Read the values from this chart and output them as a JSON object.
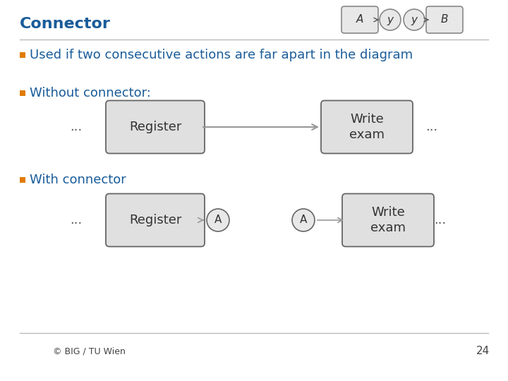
{
  "title": "Connector",
  "title_color": "#1a5c99",
  "title_fontsize": 16,
  "bullet_color": "#e07b00",
  "bullet_text_color": "#1a5c99",
  "bullet1": "Used if two consecutive actions are far apart in the diagram",
  "bullet1_fontsize": 13,
  "bullet2": "Without connector:",
  "bullet3": "With connector",
  "bullet_fontsize": 13,
  "box_fill": "#e0e0e0",
  "box_edge": "#666666",
  "arrow_color": "#999999",
  "text_color": "#333333",
  "footer_text": "© BIG / TU Wien",
  "page_number": "24",
  "bg_color": "#ffffff",
  "separator_color": "#bbbbbb",
  "dots_color": "#555555"
}
